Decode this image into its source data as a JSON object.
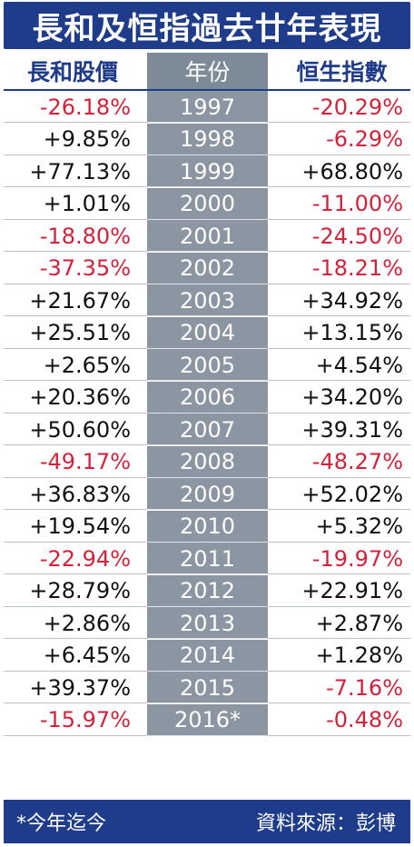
{
  "title": "長和及恒指過去廿年表現",
  "headers": {
    "left": "長和股價",
    "middle": "年份",
    "right": "恒生指數"
  },
  "footer": {
    "note": "*今年迄今",
    "source": "資料來源：彭博"
  },
  "colors": {
    "navy": "#1f3c8b",
    "negative": "#d6213b",
    "year_band": "#8b96a2"
  },
  "chart_data": {
    "type": "table",
    "columns": [
      "長和股價",
      "年份",
      "恒生指數"
    ],
    "rows": [
      {
        "year": "1997",
        "ckh": "-26.18%",
        "hsi": "-20.29%"
      },
      {
        "year": "1998",
        "ckh": "+9.85%",
        "hsi": "-6.29%"
      },
      {
        "year": "1999",
        "ckh": "+77.13%",
        "hsi": "+68.80%"
      },
      {
        "year": "2000",
        "ckh": "+1.01%",
        "hsi": "-11.00%"
      },
      {
        "year": "2001",
        "ckh": "-18.80%",
        "hsi": "-24.50%"
      },
      {
        "year": "2002",
        "ckh": "-37.35%",
        "hsi": "-18.21%"
      },
      {
        "year": "2003",
        "ckh": "+21.67%",
        "hsi": "+34.92%"
      },
      {
        "year": "2004",
        "ckh": "+25.51%",
        "hsi": "+13.15%"
      },
      {
        "year": "2005",
        "ckh": "+2.65%",
        "hsi": "+4.54%"
      },
      {
        "year": "2006",
        "ckh": "+20.36%",
        "hsi": "+34.20%"
      },
      {
        "year": "2007",
        "ckh": "+50.60%",
        "hsi": "+39.31%"
      },
      {
        "year": "2008",
        "ckh": "-49.17%",
        "hsi": "-48.27%"
      },
      {
        "year": "2009",
        "ckh": "+36.83%",
        "hsi": "+52.02%"
      },
      {
        "year": "2010",
        "ckh": "+19.54%",
        "hsi": "+5.32%"
      },
      {
        "year": "2011",
        "ckh": "-22.94%",
        "hsi": "-19.97%"
      },
      {
        "year": "2012",
        "ckh": "+28.79%",
        "hsi": "+22.91%"
      },
      {
        "year": "2013",
        "ckh": "+2.86%",
        "hsi": "+2.87%"
      },
      {
        "year": "2014",
        "ckh": "+6.45%",
        "hsi": "+1.28%"
      },
      {
        "year": "2015",
        "ckh": "+39.37%",
        "hsi": "-7.16%"
      },
      {
        "year": "2016*",
        "ckh": "-15.97%",
        "hsi": "-0.48%"
      }
    ]
  }
}
